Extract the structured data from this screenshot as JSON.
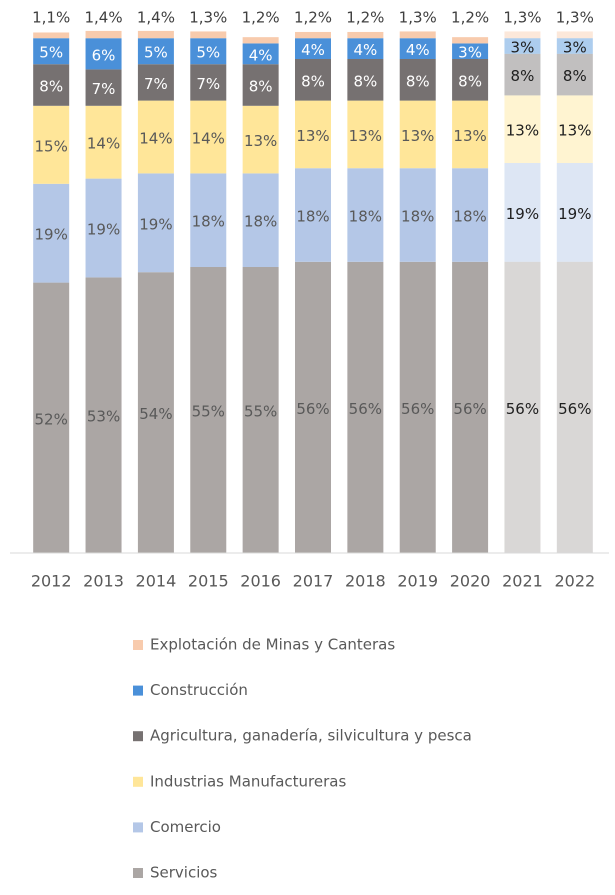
{
  "chart_data": {
    "type": "stacked_bar",
    "categories": [
      "2012",
      "2013",
      "2014",
      "2015",
      "2016",
      "2017",
      "2018",
      "2019",
      "2020",
      "2021",
      "2022"
    ],
    "ylim": [
      0,
      100
    ],
    "opacity": [
      1,
      1,
      1,
      1,
      1,
      1,
      1,
      1,
      1,
      0.45,
      0.45
    ],
    "series": [
      {
        "name": "Servicios",
        "color": "#aba6a4",
        "label_color": "#595959",
        "values": [
          52,
          53,
          54,
          55,
          55,
          56,
          56,
          56,
          56,
          56,
          56
        ]
      },
      {
        "name": "Comercio",
        "color": "#b4c7e7",
        "label_color": "#595959",
        "values": [
          19,
          19,
          19,
          18,
          18,
          18,
          18,
          18,
          18,
          19,
          19
        ]
      },
      {
        "name": "Industrias Manufactureras",
        "color": "#ffe699",
        "label_color": "#595959",
        "values": [
          15,
          14,
          14,
          14,
          13,
          13,
          13,
          13,
          13,
          13,
          13
        ]
      },
      {
        "name": "Agricultura, ganadería, silvicultura y pesca",
        "color": "#767171",
        "label_color": "#ffffff",
        "values": [
          8,
          7,
          7,
          7,
          8,
          8,
          8,
          8,
          8,
          8,
          8
        ]
      },
      {
        "name": "Construcción",
        "color": "#4a90d9",
        "label_color": "#ffffff",
        "values": [
          5,
          6,
          5,
          5,
          4,
          4,
          4,
          4,
          3,
          3,
          3
        ]
      },
      {
        "name": "Explotación de Minas y Canteras",
        "color": "#f8cbad",
        "label_color": "#404040",
        "values": [
          1.1,
          1.4,
          1.4,
          1.3,
          1.2,
          1.2,
          1.2,
          1.3,
          1.2,
          1.3,
          1.3
        ],
        "value_labels": [
          "1,1%",
          "1,4%",
          "1,4%",
          "1,3%",
          "1,2%",
          "1,2%",
          "1,2%",
          "1,3%",
          "1,2%",
          "1,3%",
          "1,3%"
        ]
      }
    ]
  }
}
